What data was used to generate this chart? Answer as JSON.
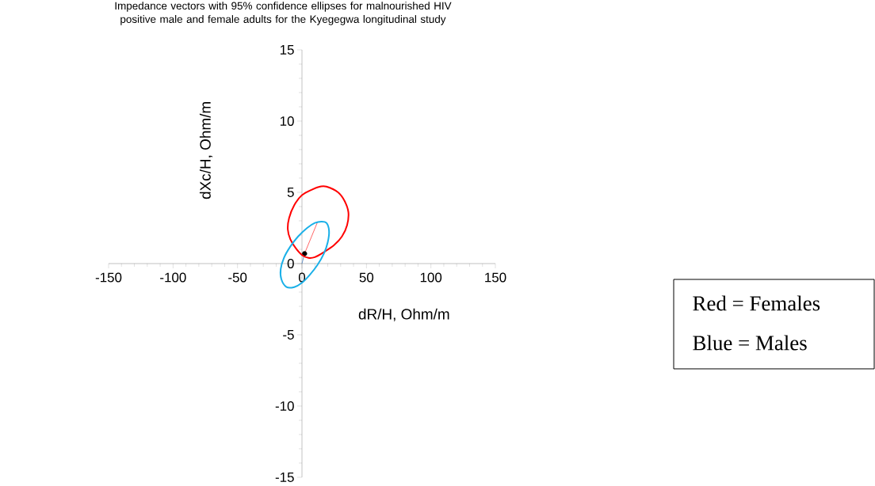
{
  "chart_data": {
    "type": "line",
    "title": "Impedance vectors with 95% confidence ellipses for malnourished HIV positive male and female adults for the Kyegegwa longitudinal study",
    "xlabel": "dR/H, Ohm/m",
    "ylabel": "dXc/H, Ohm/m",
    "xlim": [
      -150,
      150
    ],
    "ylim": [
      -15,
      15
    ],
    "xticks": [
      -150,
      -100,
      -50,
      0,
      50,
      100,
      150
    ],
    "yticks": [
      -15,
      -10,
      -5,
      0,
      5,
      10,
      15
    ],
    "marker": "none",
    "series": [
      {
        "color": "#ff4040",
        "x": [
          2,
          12
        ],
        "values": [
          0.7,
          2.9
        ]
      },
      {
        "color": "#4a7ebb",
        "x": [
          0,
          2
        ],
        "values": [
          0,
          0.7
        ]
      },
      {
        "type": "scatter",
        "marker": "circle",
        "color": "#000000",
        "x": [
          2
        ],
        "values": [
          0.7
        ]
      }
    ],
    "annotations": [
      "Red = Females",
      "Blue = Males"
    ]
  }
}
